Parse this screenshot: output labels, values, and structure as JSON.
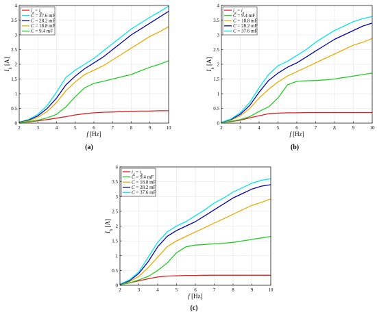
{
  "figure": {
    "panels": [
      {
        "id": "a",
        "caption": "(a)",
        "ylabel": "I_h [A]",
        "xlabel": "f [Hz]",
        "xlim": [
          2,
          10
        ],
        "ylim": [
          0,
          4
        ],
        "xticks": [
          2,
          3,
          4,
          5,
          6,
          7,
          8,
          9,
          10
        ],
        "yticks": [
          "0",
          "0.5",
          "1",
          "1.5",
          "2",
          "2.5",
          "3",
          "3.5",
          "4"
        ],
        "legend_order": [
          "id_ih",
          "37.6",
          "28.2",
          "18.8",
          "9.4"
        ]
      },
      {
        "id": "b",
        "caption": "(b)",
        "ylabel": "I_h [A]",
        "xlabel": "f [Hz]",
        "xlim": [
          2,
          10
        ],
        "ylim": [
          0,
          4
        ],
        "xticks": [
          2,
          3,
          4,
          5,
          6,
          7,
          8,
          9,
          10
        ],
        "yticks": [
          "0",
          "0.5",
          "1",
          "1.5",
          "2",
          "2.5",
          "3",
          "3.5",
          "4"
        ],
        "legend_order": [
          "id_ih",
          "9.4",
          "18.8",
          "28.2",
          "37.6"
        ]
      },
      {
        "id": "c",
        "caption": "(c)",
        "ylabel": "I_h [A]",
        "xlabel": "f [Hz]",
        "xlim": [
          2,
          10
        ],
        "ylim": [
          0,
          4
        ],
        "xticks": [
          2,
          3,
          4,
          5,
          6,
          7,
          8,
          9,
          10
        ],
        "yticks": [
          "0",
          "0.5",
          "1",
          "1.5",
          "2",
          "2.5",
          "3",
          "3.5",
          "4"
        ],
        "legend_order": [
          "id_ih",
          "9.4",
          "18.8",
          "28.2",
          "37.6"
        ]
      }
    ]
  },
  "series_styles": {
    "id_ih": {
      "label": "i_d = i_h",
      "color": "#e41a1c"
    },
    "9.4": {
      "label": "C = 9.4 mF",
      "color": "#22cc22"
    },
    "18.8": {
      "label": "C = 18.8 mF",
      "color": "#f0a800"
    },
    "28.2": {
      "label": "C = 28.2 mF",
      "color": "#0000b4"
    },
    "37.6": {
      "label": "C = 37.6 mF",
      "color": "#00e5ee"
    }
  },
  "chart_data": [
    {
      "type": "line",
      "panel": "a",
      "xlabel": "f [Hz]",
      "ylabel": "I_h [A]",
      "xlim": [
        2,
        10
      ],
      "ylim": [
        0,
        4
      ],
      "grid": true,
      "legend": "top-left",
      "x": [
        2,
        2.5,
        3,
        3.5,
        4,
        4.5,
        5,
        5.5,
        6,
        6.5,
        7,
        7.5,
        8,
        8.5,
        9,
        9.5,
        10
      ],
      "series": [
        {
          "name": "i_d = i_h",
          "key": "id_ih",
          "values": [
            0.02,
            0.04,
            0.08,
            0.12,
            0.17,
            0.22,
            0.28,
            0.32,
            0.35,
            0.37,
            0.38,
            0.39,
            0.4,
            0.41,
            0.41,
            0.42,
            0.42
          ]
        },
        {
          "name": "C = 37.6 mF",
          "key": "37.6",
          "values": [
            0.03,
            0.12,
            0.3,
            0.6,
            1.05,
            1.55,
            1.8,
            2.0,
            2.2,
            2.45,
            2.7,
            2.95,
            3.2,
            3.4,
            3.6,
            3.78,
            3.98
          ]
        },
        {
          "name": "C = 28.2 mF",
          "key": "28.2",
          "values": [
            0.03,
            0.1,
            0.25,
            0.5,
            0.85,
            1.3,
            1.6,
            1.85,
            2.05,
            2.25,
            2.5,
            2.75,
            3.0,
            3.2,
            3.4,
            3.6,
            3.8
          ]
        },
        {
          "name": "C = 18.8 mF",
          "key": "18.8",
          "values": [
            0.02,
            0.08,
            0.2,
            0.4,
            0.7,
            1.1,
            1.4,
            1.65,
            1.8,
            1.95,
            2.15,
            2.35,
            2.55,
            2.75,
            2.95,
            3.1,
            3.28
          ]
        },
        {
          "name": "C = 9.4 mF",
          "key": "9.4",
          "values": [
            0.02,
            0.05,
            0.1,
            0.18,
            0.3,
            0.55,
            0.9,
            1.2,
            1.35,
            1.42,
            1.5,
            1.58,
            1.65,
            1.78,
            1.9,
            2.0,
            2.12
          ]
        }
      ]
    },
    {
      "type": "line",
      "panel": "b",
      "xlabel": "f [Hz]",
      "ylabel": "I_h [A]",
      "xlim": [
        2,
        10
      ],
      "ylim": [
        0,
        4
      ],
      "grid": true,
      "legend": "top-left",
      "x": [
        2,
        2.5,
        3,
        3.5,
        4,
        4.5,
        5,
        5.5,
        6,
        6.5,
        7,
        7.5,
        8,
        8.5,
        9,
        9.5,
        10
      ],
      "series": [
        {
          "name": "i_d = i_h",
          "key": "id_ih",
          "values": [
            0.02,
            0.05,
            0.1,
            0.18,
            0.25,
            0.32,
            0.34,
            0.35,
            0.35,
            0.36,
            0.36,
            0.36,
            0.36,
            0.36,
            0.36,
            0.36,
            0.36
          ]
        },
        {
          "name": "C = 9.4 mF",
          "key": "9.4",
          "values": [
            0.02,
            0.06,
            0.12,
            0.22,
            0.4,
            0.55,
            0.85,
            1.3,
            1.42,
            1.44,
            1.45,
            1.47,
            1.5,
            1.55,
            1.6,
            1.65,
            1.7
          ]
        },
        {
          "name": "C = 18.8 mF",
          "key": "18.8",
          "values": [
            0.03,
            0.1,
            0.25,
            0.5,
            0.85,
            1.15,
            1.4,
            1.6,
            1.75,
            1.9,
            2.05,
            2.2,
            2.35,
            2.5,
            2.65,
            2.75,
            2.88
          ]
        },
        {
          "name": "C = 28.2 mF",
          "key": "28.2",
          "values": [
            0.03,
            0.12,
            0.3,
            0.6,
            1.05,
            1.45,
            1.7,
            1.9,
            2.05,
            2.25,
            2.45,
            2.65,
            2.85,
            3.0,
            3.15,
            3.3,
            3.4
          ]
        },
        {
          "name": "C = 37.6 mF",
          "key": "37.6",
          "values": [
            0.03,
            0.14,
            0.35,
            0.7,
            1.2,
            1.65,
            1.95,
            2.1,
            2.3,
            2.5,
            2.75,
            2.95,
            3.15,
            3.3,
            3.45,
            3.55,
            3.62
          ]
        }
      ]
    },
    {
      "type": "line",
      "panel": "c",
      "xlabel": "f [Hz]",
      "ylabel": "I_h [A]",
      "xlim": [
        2,
        10
      ],
      "ylim": [
        0,
        4
      ],
      "grid": true,
      "legend": "top-left",
      "x": [
        2,
        2.5,
        3,
        3.5,
        4,
        4.5,
        5,
        5.5,
        6,
        6.5,
        7,
        7.5,
        8,
        8.5,
        9,
        9.5,
        10
      ],
      "series": [
        {
          "name": "i_d = i_h",
          "key": "id_ih",
          "values": [
            0.02,
            0.08,
            0.15,
            0.22,
            0.28,
            0.31,
            0.32,
            0.33,
            0.33,
            0.34,
            0.34,
            0.34,
            0.34,
            0.34,
            0.34,
            0.34,
            0.34
          ]
        },
        {
          "name": "C = 9.4 mF",
          "key": "9.4",
          "values": [
            0.02,
            0.08,
            0.18,
            0.3,
            0.5,
            0.75,
            1.1,
            1.3,
            1.36,
            1.38,
            1.4,
            1.42,
            1.45,
            1.5,
            1.55,
            1.6,
            1.65
          ]
        },
        {
          "name": "C = 18.8 mF",
          "key": "18.8",
          "values": [
            0.03,
            0.12,
            0.3,
            0.6,
            0.95,
            1.3,
            1.5,
            1.65,
            1.8,
            1.95,
            2.1,
            2.25,
            2.4,
            2.55,
            2.7,
            2.8,
            2.92
          ]
        },
        {
          "name": "C = 28.2 mF",
          "key": "28.2",
          "values": [
            0.03,
            0.15,
            0.4,
            0.8,
            1.3,
            1.65,
            1.85,
            2.0,
            2.15,
            2.35,
            2.55,
            2.75,
            2.95,
            3.1,
            3.25,
            3.35,
            3.4
          ]
        },
        {
          "name": "C = 37.6 mF",
          "key": "37.6",
          "values": [
            0.04,
            0.18,
            0.45,
            0.95,
            1.45,
            1.8,
            2.0,
            2.15,
            2.35,
            2.55,
            2.78,
            2.95,
            3.15,
            3.3,
            3.45,
            3.55,
            3.6
          ]
        }
      ]
    }
  ]
}
